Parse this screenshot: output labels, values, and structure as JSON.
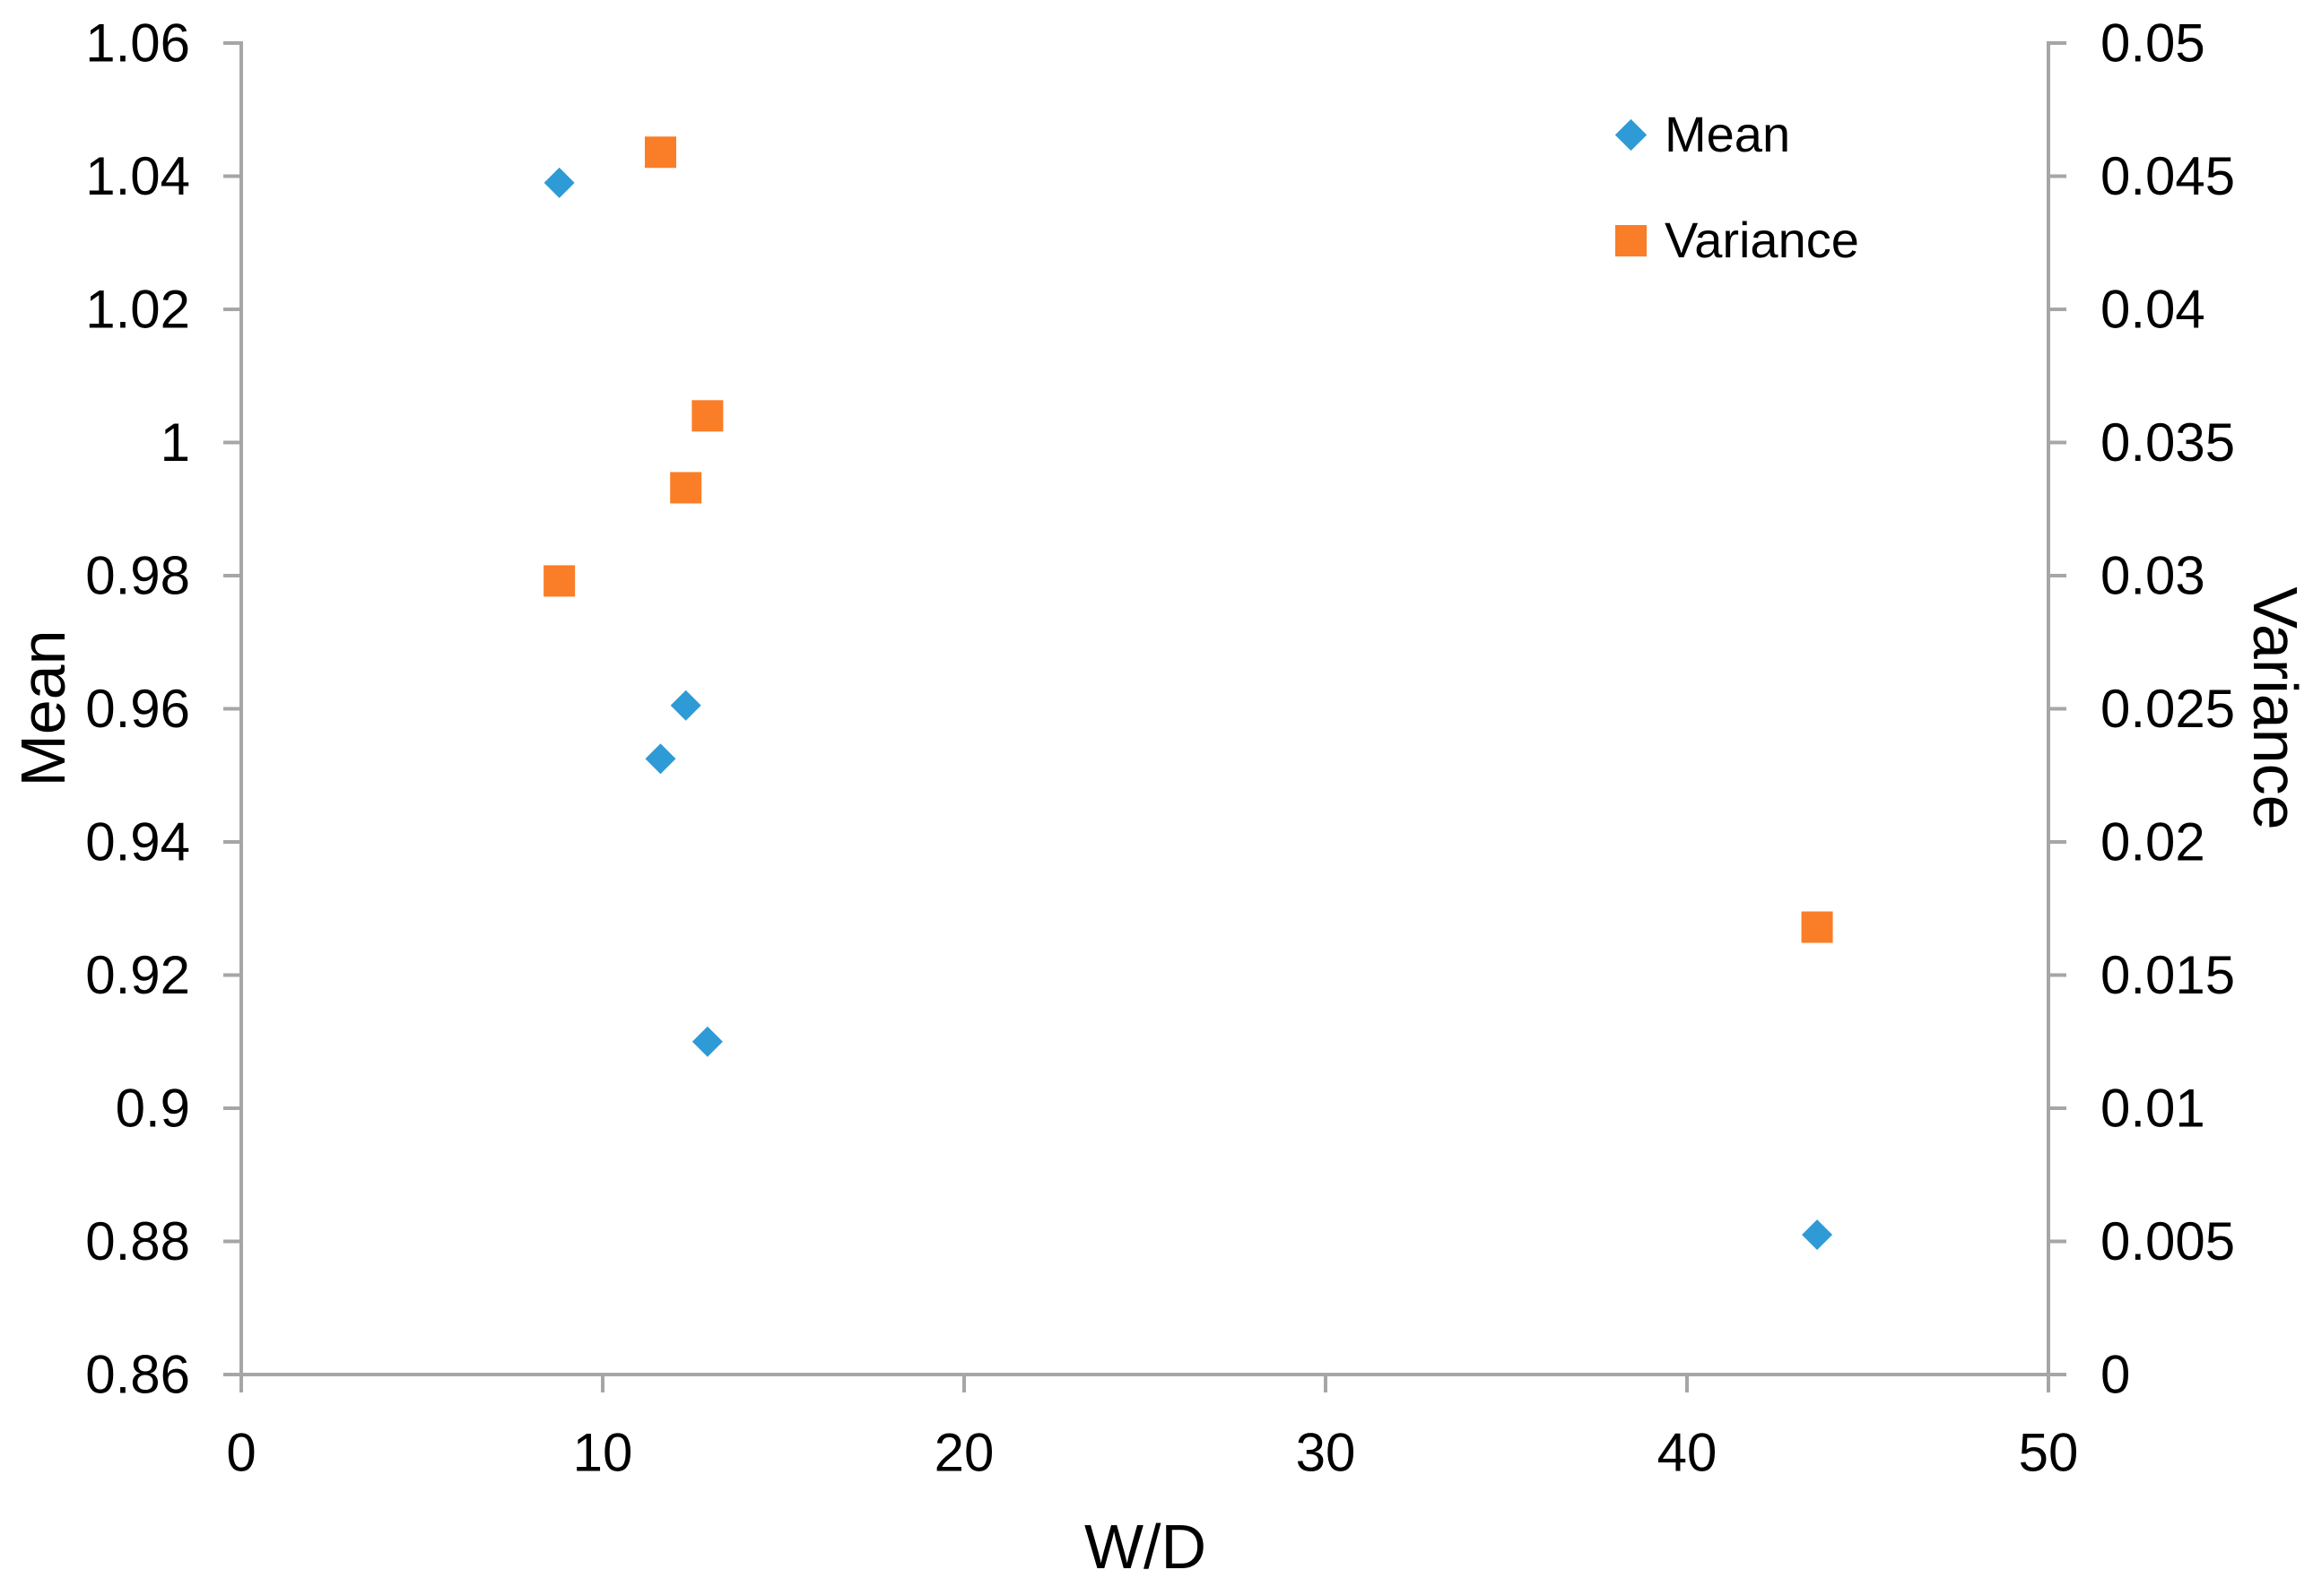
{
  "chart_data": {
    "type": "scatter",
    "title": "",
    "background": "#FFFFFF",
    "axis_color": "#A6A6A6",
    "text_color": "#000000",
    "grid": false,
    "x_axis": {
      "label": "W/D",
      "min": 0,
      "max": 50,
      "ticks": [
        {
          "value": 0,
          "label": "0"
        },
        {
          "value": 10,
          "label": "10"
        },
        {
          "value": 20,
          "label": "20"
        },
        {
          "value": 30,
          "label": "30"
        },
        {
          "value": 40,
          "label": "40"
        },
        {
          "value": 50,
          "label": "50"
        }
      ]
    },
    "y_axis_left": {
      "label": "Mean",
      "min": 0.86,
      "max": 1.06,
      "ticks": [
        {
          "value": 1.06,
          "label": "1.06"
        },
        {
          "value": 1.04,
          "label": "1.04"
        },
        {
          "value": 1.02,
          "label": "1.02"
        },
        {
          "value": 1.0,
          "label": "1"
        },
        {
          "value": 0.98,
          "label": "0.98"
        },
        {
          "value": 0.96,
          "label": "0.96"
        },
        {
          "value": 0.94,
          "label": "0.94"
        },
        {
          "value": 0.92,
          "label": "0.92"
        },
        {
          "value": 0.9,
          "label": "0.9"
        },
        {
          "value": 0.88,
          "label": "0.88"
        },
        {
          "value": 0.86,
          "label": "0.86"
        }
      ]
    },
    "y_axis_right": {
      "label": "Variance",
      "min": 0,
      "max": 0.05,
      "ticks": [
        {
          "value": 0.05,
          "label": "0.05"
        },
        {
          "value": 0.045,
          "label": "0.045"
        },
        {
          "value": 0.04,
          "label": "0.04"
        },
        {
          "value": 0.035,
          "label": "0.035"
        },
        {
          "value": 0.03,
          "label": "0.03"
        },
        {
          "value": 0.025,
          "label": "0.025"
        },
        {
          "value": 0.02,
          "label": "0.02"
        },
        {
          "value": 0.015,
          "label": "0.015"
        },
        {
          "value": 0.01,
          "label": "0.01"
        },
        {
          "value": 0.005,
          "label": "0.005"
        },
        {
          "value": 0,
          "label": "0"
        }
      ]
    },
    "series": [
      {
        "name": "Mean",
        "axis": "left",
        "marker": "diamond",
        "color": "#2E9BD6",
        "points": [
          {
            "x": 8.8,
            "y": 1.039
          },
          {
            "x": 11.6,
            "y": 0.9525
          },
          {
            "x": 12.3,
            "y": 0.9605
          },
          {
            "x": 12.9,
            "y": 0.91
          },
          {
            "x": 43.6,
            "y": 0.881
          }
        ]
      },
      {
        "name": "Variance",
        "axis": "right",
        "marker": "square",
        "color": "#FA7E27",
        "points": [
          {
            "x": 8.8,
            "y": 0.0298
          },
          {
            "x": 11.6,
            "y": 0.0459
          },
          {
            "x": 12.3,
            "y": 0.0333
          },
          {
            "x": 12.9,
            "y": 0.036
          },
          {
            "x": 43.6,
            "y": 0.0168
          }
        ]
      }
    ],
    "legend": {
      "position": "top-right",
      "entries": [
        {
          "label": "Mean",
          "marker": "diamond",
          "color": "#2E9BD6"
        },
        {
          "label": "Variance",
          "marker": "square",
          "color": "#FA7E27"
        }
      ]
    }
  }
}
